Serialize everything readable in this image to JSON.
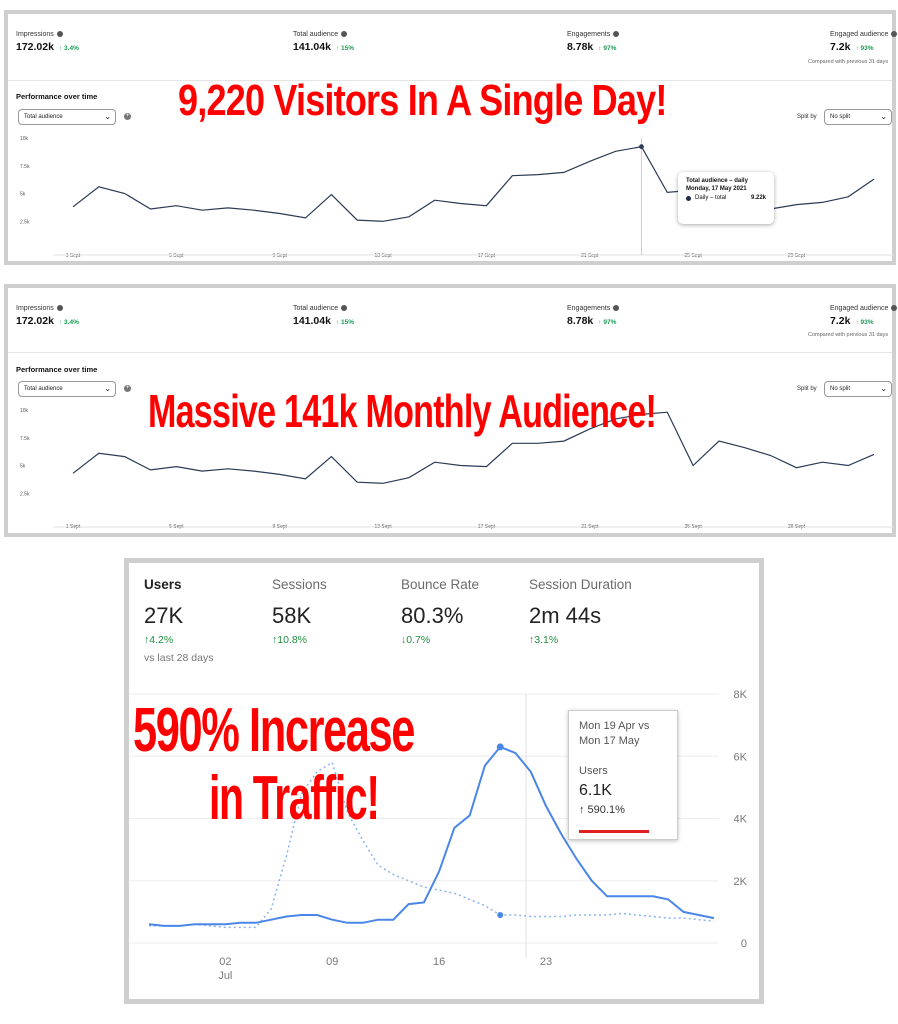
{
  "panel1": {
    "metrics": [
      {
        "label": "Impressions",
        "value": "172.02k",
        "change": "3.4%"
      },
      {
        "label": "Total audience",
        "value": "141.04k",
        "change": "15%"
      },
      {
        "label": "Engagements",
        "value": "8.78k",
        "change": "97%"
      },
      {
        "label": "Engaged audience",
        "value": "7.2k",
        "change": "93%"
      }
    ],
    "compared_text": "Compared with previous 31 days",
    "section_title": "Performance over time",
    "dropdown_value": "Total audience",
    "split_label": "Split by",
    "split_value": "No split",
    "headline": "9,220 Visitors In A Single Day!",
    "tooltip": {
      "title": "Total audience – daily",
      "date": "Monday, 17 May 2021",
      "series": "Daily – total",
      "value": "9.22k"
    }
  },
  "panel2": {
    "metrics": [
      {
        "label": "Impressions",
        "value": "172.02k",
        "change": "3.4%"
      },
      {
        "label": "Total audience",
        "value": "141.04k",
        "change": "15%"
      },
      {
        "label": "Engagements",
        "value": "8.78k",
        "change": "97%"
      },
      {
        "label": "Engaged audience",
        "value": "7.2k",
        "change": "93%"
      }
    ],
    "compared_text": "Compared with previous 31 days",
    "section_title": "Performance over time",
    "dropdown_value": "Total audience",
    "split_label": "Split by",
    "split_value": "No split",
    "headline": "Massive 141k Monthly Audience!"
  },
  "panel3": {
    "metrics": [
      {
        "label": "Users",
        "value": "27K",
        "change": "↑4.2%"
      },
      {
        "label": "Sessions",
        "value": "58K",
        "change": "↑10.8%"
      },
      {
        "label": "Bounce Rate",
        "value": "80.3%",
        "change": "↓0.7%"
      },
      {
        "label": "Session Duration",
        "value": "2m 44s",
        "change": "↑3.1%"
      }
    ],
    "vs_text": "vs last 28 days",
    "headline_line1": "590% Increase",
    "headline_line2": "in Traffic!",
    "tooltip": {
      "date_line1": "Mon 19 Apr vs",
      "date_line2": "Mon 17 May",
      "metric": "Users",
      "value": "6.1K",
      "change": "↑ 590.1%"
    }
  },
  "colors": {
    "accent_green": "#1a9c55",
    "headline_red": "#ff0000",
    "line_navy": "#2b3a55",
    "ga_blue": "#4a86e8"
  },
  "chart_data": [
    {
      "type": "line",
      "x_ticks": [
        "1 Sept",
        "5 Sept",
        "9 Sept",
        "13 Sept",
        "17 Sept",
        "21 Sept",
        "25 Sept",
        "29 Sept"
      ],
      "y_ticks": [
        "10k",
        "7.5k",
        "5k",
        "2.5k"
      ],
      "ylim": [
        0,
        10000
      ],
      "series": [
        {
          "values": [
            3800,
            5600,
            5000,
            3600,
            3900,
            3500,
            3700,
            3500,
            3200,
            2800,
            4900,
            2600,
            2500,
            2900,
            4400,
            4100,
            3900,
            6600,
            6700,
            6900,
            7900,
            8800,
            9220,
            5100,
            5300,
            5300,
            4300,
            3600,
            4000,
            4200,
            4700,
            6300
          ]
        }
      ]
    },
    {
      "type": "line",
      "x_ticks": [
        "1 Sept",
        "5 Sept",
        "9 Sept",
        "13 Sept",
        "17 Sept",
        "21 Sept",
        "25 Sept",
        "29 Sept"
      ],
      "y_ticks": [
        "10k",
        "7.5k",
        "5k",
        "2.5k"
      ],
      "ylim": [
        0,
        10000
      ],
      "series": [
        {
          "values": [
            4300,
            6100,
            5800,
            4600,
            4900,
            4500,
            4700,
            4500,
            4200,
            3800,
            5800,
            3500,
            3400,
            3900,
            5300,
            5000,
            4900,
            7000,
            7000,
            7200,
            8300,
            9200,
            9600,
            9800,
            5000,
            7200,
            6600,
            5900,
            4800,
            5300,
            5000,
            6000
          ]
        }
      ]
    },
    {
      "type": "line",
      "x_ticks": [
        "02",
        "09",
        "16",
        "23"
      ],
      "x_sublabel": "Jul",
      "y_ticks": [
        "8K",
        "6K",
        "4K",
        "2K",
        "0"
      ],
      "ylim": [
        0,
        8000
      ],
      "series": [
        {
          "values": [
            600,
            550,
            550,
            600,
            600,
            600,
            650,
            650,
            750,
            850,
            900,
            900,
            750,
            650,
            650,
            750,
            750,
            1250,
            1300,
            2300,
            3700,
            4100,
            5700,
            6300,
            6100,
            5500,
            4400,
            3500,
            2700,
            2000,
            1500,
            1500,
            1500,
            1500,
            1400,
            1000,
            900,
            800
          ]
        },
        {
          "values": [
            550,
            550,
            550,
            600,
            550,
            500,
            500,
            500,
            1100,
            2800,
            4800,
            5500,
            5800,
            4200,
            3300,
            2500,
            2200,
            2000,
            1800,
            1700,
            1600,
            1400,
            1200,
            900,
            900,
            850,
            850,
            850,
            900,
            900,
            900,
            950,
            900,
            850,
            800,
            800,
            750,
            700
          ]
        }
      ]
    }
  ]
}
